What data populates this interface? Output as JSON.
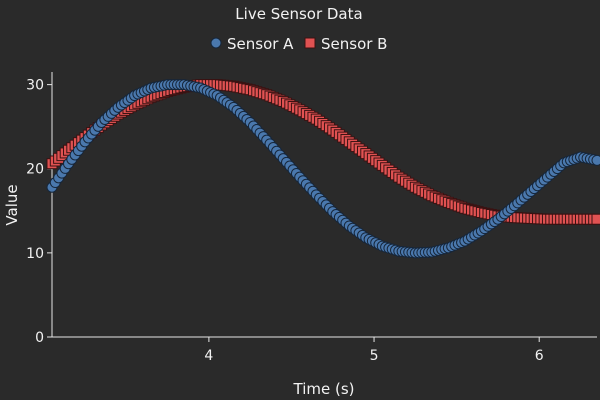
{
  "chart_data": {
    "type": "scatter",
    "title": "Live Sensor Data",
    "xlabel": "Time (s)",
    "ylabel": "Value",
    "xlim": [
      3.05,
      6.35
    ],
    "ylim": [
      0,
      31.5
    ],
    "xticks": [
      4,
      5,
      6
    ],
    "yticks": [
      0,
      10,
      20,
      30
    ],
    "grid": false,
    "legend_position": "top-center",
    "background": "#2a2a2a",
    "series": [
      {
        "name": "Sensor A",
        "marker": "circle",
        "color": "#4a78ad",
        "edge_color": "#16263a",
        "x": [
          3.05,
          3.15,
          3.25,
          3.35,
          3.45,
          3.55,
          3.65,
          3.75,
          3.85,
          3.95,
          4.05,
          4.15,
          4.25,
          4.35,
          4.45,
          4.55,
          4.65,
          4.75,
          4.85,
          4.95,
          5.05,
          5.15,
          5.25,
          5.35,
          5.45,
          5.55,
          5.65,
          5.75,
          5.85,
          5.95,
          6.05,
          6.15,
          6.25,
          6.35
        ],
        "y": [
          17.8,
          20.6,
          23.2,
          25.5,
          27.3,
          28.7,
          29.6,
          30.0,
          30.0,
          29.6,
          28.7,
          27.3,
          25.5,
          23.4,
          21.2,
          19.0,
          16.9,
          14.9,
          13.2,
          11.8,
          10.8,
          10.2,
          10.0,
          10.1,
          10.6,
          11.4,
          12.6,
          14.0,
          15.6,
          17.3,
          19.0,
          20.7,
          21.4,
          21.0
        ]
      },
      {
        "name": "Sensor B",
        "marker": "square",
        "color": "#e05252",
        "edge_color": "#3a1212",
        "x": [
          3.05,
          3.15,
          3.25,
          3.35,
          3.45,
          3.55,
          3.65,
          3.75,
          3.85,
          3.95,
          4.05,
          4.15,
          4.25,
          4.35,
          4.45,
          4.55,
          4.65,
          4.75,
          4.85,
          4.95,
          5.05,
          5.15,
          5.25,
          5.35,
          5.45,
          5.55,
          5.65,
          5.75,
          5.85,
          5.95,
          6.05,
          6.15,
          6.25,
          6.35
        ],
        "y": [
          20.6,
          22.2,
          23.7,
          25.2,
          26.5,
          27.6,
          28.5,
          29.2,
          29.7,
          30.0,
          30.0,
          29.8,
          29.4,
          28.8,
          28.0,
          27.0,
          25.9,
          24.6,
          23.2,
          21.8,
          20.4,
          19.0,
          17.8,
          16.8,
          16.0,
          15.3,
          14.8,
          14.4,
          14.2,
          14.1,
          14.0,
          14.0,
          14.0,
          14.0
        ]
      }
    ]
  }
}
